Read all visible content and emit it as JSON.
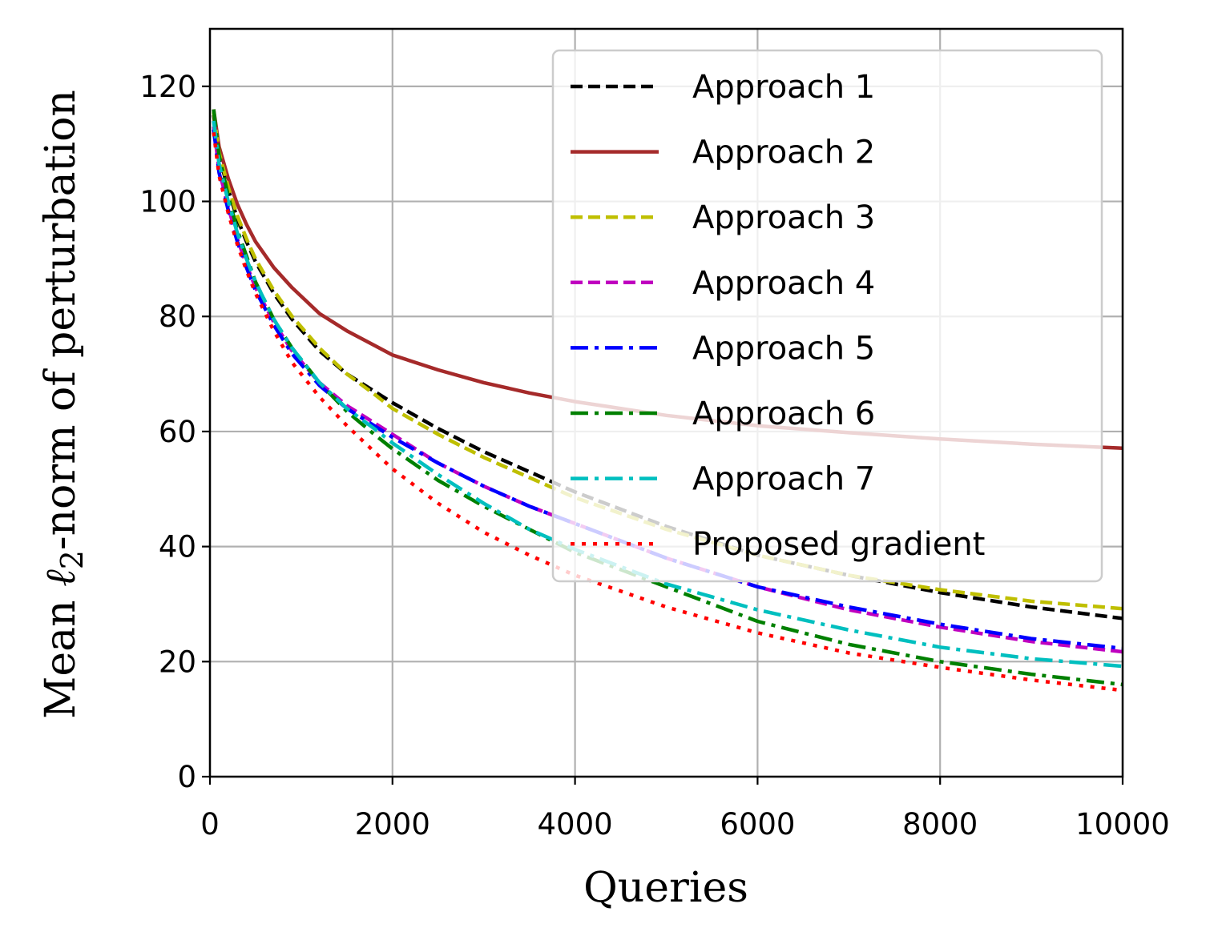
{
  "chart_data": {
    "type": "line",
    "title": "",
    "xlabel": "Queries",
    "ylabel": "Mean ℓ2-norm of perturbation",
    "ylabel_parts": {
      "prefix": "Mean ",
      "ell": "ℓ",
      "sub": "2",
      "suffix": "-norm of perturbation"
    },
    "xlim": [
      0,
      10000
    ],
    "ylim": [
      0,
      130
    ],
    "xticks": [
      0,
      2000,
      4000,
      6000,
      8000,
      10000
    ],
    "xtick_labels": [
      "0",
      "2000",
      "4000",
      "6000",
      "8000",
      "10000"
    ],
    "yticks": [
      0,
      20,
      40,
      60,
      80,
      100,
      120
    ],
    "ytick_labels": [
      "0",
      "20",
      "40",
      "60",
      "80",
      "100",
      "120"
    ],
    "grid": true,
    "legend_position": "top-right",
    "x": [
      40,
      100,
      200,
      300,
      400,
      500,
      700,
      900,
      1200,
      1500,
      1800,
      2000,
      2500,
      3000,
      3500,
      4000,
      5000,
      6000,
      7000,
      8000,
      9000,
      10000
    ],
    "series": [
      {
        "name": "Approach 1",
        "color": "#000000",
        "style": "dashed",
        "values": [
          115,
          108,
          102,
          97,
          93,
          89.5,
          84,
          79.5,
          74,
          70,
          67,
          65,
          60.5,
          56.5,
          53,
          49.5,
          43.5,
          38.5,
          35,
          32,
          29.5,
          27.5
        ]
      },
      {
        "name": "Approach 2",
        "color": "#a52a2a",
        "style": "solid",
        "values": [
          116,
          109.5,
          104,
          99.5,
          96,
          93,
          88.5,
          85,
          80.5,
          77.5,
          75,
          73.3,
          70.7,
          68.5,
          66.7,
          65.2,
          62.8,
          61,
          59.8,
          58.7,
          57.8,
          57.1
        ]
      },
      {
        "name": "Approach 3",
        "color": "#bfbf00",
        "style": "dashed",
        "values": [
          115.5,
          108.5,
          102.5,
          97.5,
          93.5,
          90,
          84.5,
          80,
          74.5,
          70,
          66.5,
          64,
          59.5,
          55.5,
          52,
          48.5,
          43,
          38.5,
          35,
          32.5,
          30.5,
          29.2
        ]
      },
      {
        "name": "Approach 4",
        "color": "#bf00bf",
        "style": "dashed",
        "values": [
          113,
          105.5,
          99,
          93.5,
          89,
          85,
          79,
          74,
          68.5,
          64.5,
          61.5,
          59.5,
          54.5,
          50.5,
          47,
          44,
          38,
          33,
          29,
          26,
          23.5,
          21.7
        ]
      },
      {
        "name": "Approach 5",
        "color": "#0000ff",
        "style": "dashdot",
        "values": [
          112.5,
          105,
          98.5,
          93,
          88.5,
          84.5,
          78.5,
          73.5,
          68,
          64,
          61,
          59,
          54.5,
          50.5,
          47,
          44,
          38,
          33,
          29.5,
          26.5,
          24,
          22.3
        ]
      },
      {
        "name": "Approach 6",
        "color": "#008000",
        "style": "dashdot",
        "values": [
          116,
          108,
          101,
          95,
          90.5,
          86,
          79.5,
          74.5,
          68.5,
          63.5,
          59.5,
          57,
          51.5,
          47,
          43,
          39,
          33,
          27,
          23,
          20,
          17.8,
          16
        ]
      },
      {
        "name": "Approach 7",
        "color": "#00bfbf",
        "style": "dashdot",
        "values": [
          114,
          106.5,
          100,
          94.5,
          90,
          86,
          79.5,
          74.5,
          68.5,
          64,
          60.5,
          58,
          52.5,
          47.5,
          43,
          39.5,
          33.5,
          29,
          25.5,
          22.5,
          20.5,
          19.2
        ]
      },
      {
        "name": "Proposed gradient",
        "color": "#ff0000",
        "style": "dotted",
        "values": [
          112,
          104.5,
          98,
          92.5,
          88,
          84,
          77.5,
          72,
          66,
          61,
          56.5,
          53.5,
          47.5,
          42.5,
          38.5,
          35,
          29.5,
          25,
          21.5,
          19,
          16.8,
          15
        ]
      }
    ]
  }
}
